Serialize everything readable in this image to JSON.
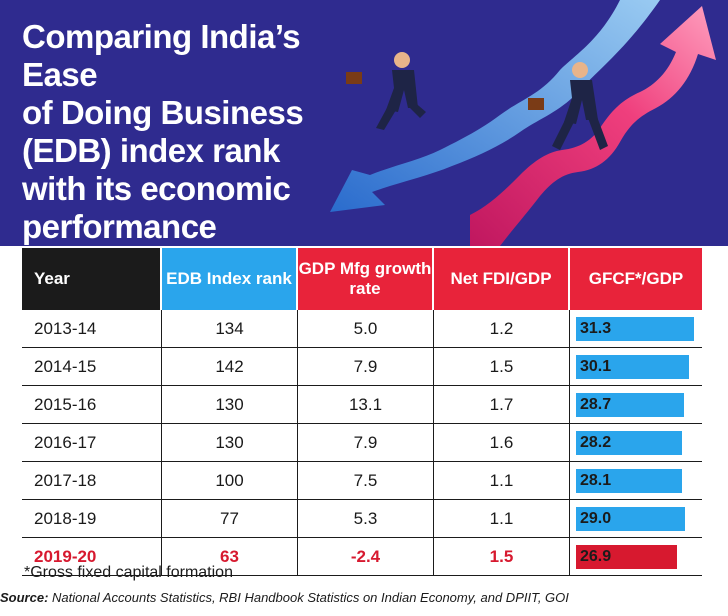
{
  "title": "Comparing India’s Ease\nof Doing Business\n(EDB) index rank\nwith its economic\nperformance",
  "colors": {
    "banner": "#2f2b8f",
    "blue": "#2aa5ec",
    "red": "#e8233a",
    "dark": "#1b1b1b",
    "highlight_text": "#d7192f",
    "highlight_bar": "#d7192f"
  },
  "chart_data": {
    "type": "table",
    "columns": [
      "Year",
      "EDB Index rank",
      "GDP Mfg growth rate",
      "Net FDI/GDP",
      "GFCF*/GDP"
    ],
    "rows": [
      [
        "2013-14",
        "134",
        "5.0",
        "1.2",
        "31.3"
      ],
      [
        "2014-15",
        "142",
        "7.9",
        "1.5",
        "30.1"
      ],
      [
        "2015-16",
        "130",
        "13.1",
        "1.7",
        "28.7"
      ],
      [
        "2016-17",
        "130",
        "7.9",
        "1.6",
        "28.2"
      ],
      [
        "2017-18",
        "100",
        "7.5",
        "1.1",
        "28.1"
      ],
      [
        "2018-19",
        "77",
        "5.3",
        "1.1",
        "29.0"
      ],
      [
        "2019-20",
        "63",
        "-2.4",
        "1.5",
        "26.9"
      ]
    ],
    "highlight_row": "2019-20",
    "gfcf_bar_max": 31.3
  },
  "header": {
    "year": "Year",
    "edb": "EDB Index rank",
    "gdp": "GDP Mfg growth rate",
    "fdi": "Net FDI/GDP",
    "gfcf": "GFCF*/GDP"
  },
  "footnote": "*Gross fixed capital formation",
  "source_label": "Source:",
  "source_text": " National Accounts Statistics, RBI Handbook Statistics on Indian Economy, and DPIIT, GOI"
}
